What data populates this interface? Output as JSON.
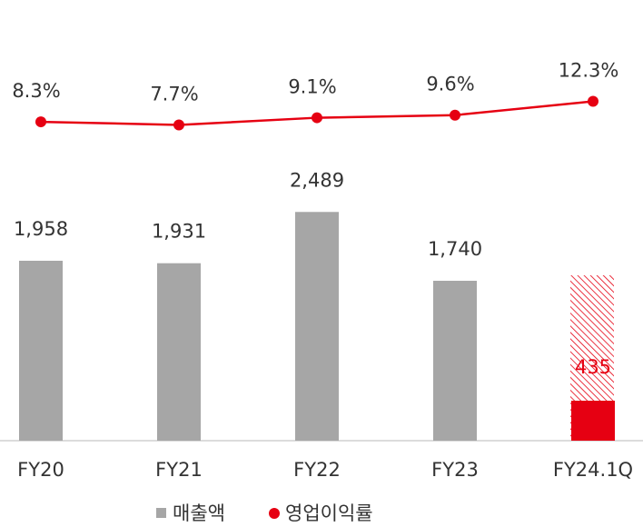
{
  "chart_data": {
    "type": "bar_line",
    "categories": [
      "FY20",
      "FY21",
      "FY22",
      "FY23",
      "FY24.1Q"
    ],
    "ylim": [
      0,
      4400
    ],
    "y2lim": [
      -54,
      25
    ],
    "series": [
      {
        "name": "매출액",
        "type": "bar",
        "color": "#a6a6a6",
        "colors": [
          "#a6a6a6",
          "#a6a6a6",
          "#a6a6a6",
          "#a6a6a6",
          "#e60012"
        ],
        "values": [
          1958,
          1931,
          2489,
          1740,
          435
        ],
        "value_labels": [
          "1,958",
          "1,931",
          "2,489",
          "1,740",
          "435"
        ]
      },
      {
        "name": "영업이익률",
        "type": "line",
        "axis": "y2",
        "color": "#e60012",
        "values": [
          8.3,
          7.7,
          9.1,
          9.6,
          12.3
        ],
        "value_labels": [
          "8.3%",
          "7.7%",
          "9.1%",
          "9.6%",
          "12.3%"
        ]
      }
    ]
  }
}
